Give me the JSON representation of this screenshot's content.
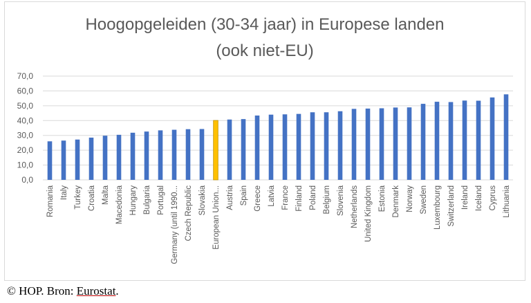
{
  "chart_data": {
    "type": "bar",
    "title_line1": "Hoogopgeleiden (30-34 jaar) in Europese landen",
    "title_line2": "(ook niet-EU)",
    "categories": [
      "Romania",
      "Italy",
      "Turkey",
      "Croatia",
      "Malta",
      "Macedonia",
      "Hungary",
      "Bulgaria",
      "Portugal",
      "Germany (until 1990...",
      "Czech Republic",
      "Slovakia",
      "European Union...",
      "Austria",
      "Spain",
      "Greece",
      "Latvia",
      "France",
      "Finland",
      "Poland",
      "Belgium",
      "Slovenia",
      "Netherlands",
      "United Kingdom",
      "Estonia",
      "Denmark",
      "Norway",
      "Sweden",
      "Luxembourg",
      "Switzerland",
      "Ireland",
      "Iceland",
      "Cyprus",
      "Lithuania"
    ],
    "values": [
      26.0,
      26.5,
      27.2,
      28.5,
      29.8,
      30.4,
      31.8,
      32.6,
      33.4,
      33.8,
      34.2,
      34.3,
      40.1,
      40.7,
      41.0,
      43.4,
      44.0,
      44.2,
      44.5,
      45.6,
      45.6,
      46.3,
      47.9,
      48.1,
      48.3,
      48.8,
      48.9,
      51.3,
      52.7,
      52.5,
      53.5,
      53.4,
      55.6,
      57.7
    ],
    "highlight_index": 12,
    "ylim": [
      0,
      70
    ],
    "yticks": [
      "0,0",
      "10,0",
      "20,0",
      "30,0",
      "40,0",
      "50,0",
      "60,0",
      "70,0"
    ],
    "grid": true,
    "colors": {
      "bar": "#4472c4",
      "highlight": "#ffc000",
      "highlight_border": "#bf9000",
      "grid": "#d9d9d9",
      "text": "#595959"
    }
  },
  "footer": {
    "prefix": "© HOP. Bron: ",
    "source": "Eurostat",
    "suffix": "."
  }
}
